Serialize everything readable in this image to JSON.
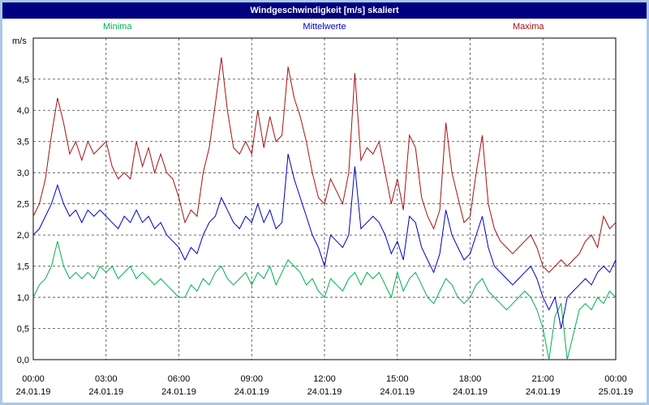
{
  "window": {
    "title": "Windgeschwindigkeit [m/s] skaliert"
  },
  "legend": {
    "minima": "Minima",
    "mittelwerte": "Mittelwerte",
    "maxima": "Maxima"
  },
  "colors": {
    "title_bar": "#000080",
    "panel_border": "#a8c8e8",
    "plot_border": "#000000",
    "gridline": "#404040",
    "minima_line": "#00b050",
    "mittelwerte_line": "#0000c0",
    "maxima_line": "#a81010"
  },
  "chart_data": {
    "type": "line",
    "title": "Windgeschwindigkeit [m/s] skaliert",
    "ylabel": "m/s",
    "ylim": [
      0,
      5.16
    ],
    "x_hours": 24,
    "sample_interval_minutes": 15,
    "grid": "dashed",
    "legend_position": "top",
    "y_ticks": [
      {
        "value": 0.0,
        "label": "0,0"
      },
      {
        "value": 0.5,
        "label": "0,5"
      },
      {
        "value": 1.0,
        "label": "1,0"
      },
      {
        "value": 1.5,
        "label": "1,5"
      },
      {
        "value": 2.0,
        "label": "2,0"
      },
      {
        "value": 2.5,
        "label": "2,5"
      },
      {
        "value": 3.0,
        "label": "3,0"
      },
      {
        "value": 3.5,
        "label": "3,5"
      },
      {
        "value": 4.0,
        "label": "4,0"
      },
      {
        "value": 4.5,
        "label": "4,5"
      }
    ],
    "x_ticks": [
      {
        "hour": 0,
        "time": "00:00",
        "date": "24.01.19"
      },
      {
        "hour": 3,
        "time": "03:00",
        "date": "24.01.19"
      },
      {
        "hour": 6,
        "time": "06:00",
        "date": "24.01.19"
      },
      {
        "hour": 9,
        "time": "09:00",
        "date": "24.01.19"
      },
      {
        "hour": 12,
        "time": "12:00",
        "date": "24.01.19"
      },
      {
        "hour": 15,
        "time": "15:00",
        "date": "24.01.19"
      },
      {
        "hour": 18,
        "time": "18:00",
        "date": "24.01.19"
      },
      {
        "hour": 21,
        "time": "21:00",
        "date": "24.01.19"
      },
      {
        "hour": 24,
        "time": "00:00",
        "date": "25.01.19"
      }
    ],
    "series": [
      {
        "name": "Minima",
        "color": "#00b050",
        "values": [
          1.0,
          1.2,
          1.3,
          1.5,
          1.9,
          1.5,
          1.3,
          1.4,
          1.3,
          1.4,
          1.3,
          1.5,
          1.4,
          1.5,
          1.3,
          1.4,
          1.5,
          1.3,
          1.4,
          1.3,
          1.2,
          1.3,
          1.2,
          1.1,
          1.0,
          1.0,
          1.2,
          1.1,
          1.3,
          1.2,
          1.4,
          1.5,
          1.3,
          1.2,
          1.3,
          1.4,
          1.2,
          1.4,
          1.3,
          1.5,
          1.2,
          1.4,
          1.6,
          1.5,
          1.4,
          1.2,
          1.3,
          1.1,
          1.0,
          1.3,
          1.2,
          1.1,
          1.3,
          1.4,
          1.2,
          1.4,
          1.3,
          1.4,
          1.2,
          1.0,
          1.4,
          1.1,
          1.3,
          1.4,
          1.2,
          1.0,
          0.9,
          1.1,
          1.3,
          1.2,
          1.0,
          0.9,
          1.0,
          1.2,
          1.3,
          1.1,
          1.0,
          0.9,
          0.8,
          0.9,
          1.0,
          1.1,
          1.0,
          0.8,
          0.5,
          0.0,
          0.7,
          0.9,
          0.0,
          0.4,
          0.8,
          0.9,
          0.8,
          1.0,
          0.9,
          1.1,
          1.0
        ]
      },
      {
        "name": "Mittelwerte",
        "color": "#0000c0",
        "values": [
          2.0,
          2.1,
          2.3,
          2.5,
          2.8,
          2.5,
          2.3,
          2.4,
          2.2,
          2.4,
          2.3,
          2.4,
          2.3,
          2.2,
          2.1,
          2.3,
          2.2,
          2.4,
          2.2,
          2.3,
          2.1,
          2.2,
          2.0,
          1.9,
          1.8,
          1.6,
          1.8,
          1.7,
          2.0,
          2.2,
          2.3,
          2.6,
          2.4,
          2.2,
          2.1,
          2.3,
          2.2,
          2.5,
          2.2,
          2.4,
          2.1,
          2.2,
          3.3,
          2.9,
          2.6,
          2.3,
          2.0,
          1.8,
          1.5,
          2.0,
          1.9,
          1.8,
          2.0,
          3.1,
          2.1,
          2.2,
          2.3,
          2.2,
          2.0,
          1.7,
          1.9,
          1.6,
          2.3,
          2.2,
          1.8,
          1.6,
          1.4,
          1.7,
          2.4,
          2.0,
          1.8,
          1.6,
          1.7,
          2.0,
          2.3,
          1.8,
          1.5,
          1.4,
          1.3,
          1.2,
          1.3,
          1.4,
          1.5,
          1.3,
          1.0,
          0.8,
          1.0,
          0.5,
          1.0,
          1.1,
          1.2,
          1.3,
          1.2,
          1.4,
          1.5,
          1.4,
          1.6
        ]
      },
      {
        "name": "Maxima",
        "color": "#a81010",
        "values": [
          2.3,
          2.5,
          2.9,
          3.6,
          4.2,
          3.8,
          3.3,
          3.5,
          3.2,
          3.5,
          3.3,
          3.4,
          3.5,
          3.1,
          2.9,
          3.0,
          2.9,
          3.5,
          3.1,
          3.4,
          3.0,
          3.3,
          3.0,
          2.9,
          2.6,
          2.2,
          2.4,
          2.3,
          3.0,
          3.4,
          4.1,
          4.85,
          4.0,
          3.4,
          3.3,
          3.5,
          3.3,
          4.0,
          3.4,
          3.9,
          3.5,
          3.6,
          4.7,
          4.2,
          3.9,
          3.5,
          3.0,
          2.6,
          2.5,
          2.9,
          2.7,
          2.5,
          3.0,
          4.6,
          3.2,
          3.4,
          3.3,
          3.5,
          3.0,
          2.5,
          2.9,
          2.4,
          3.6,
          3.4,
          2.6,
          2.3,
          2.1,
          2.4,
          3.8,
          3.0,
          2.6,
          2.2,
          2.3,
          3.0,
          3.6,
          2.5,
          2.1,
          1.9,
          1.8,
          1.7,
          1.8,
          1.9,
          2.0,
          1.8,
          1.5,
          1.4,
          1.5,
          1.6,
          1.5,
          1.6,
          1.7,
          1.9,
          2.0,
          1.8,
          2.3,
          2.1,
          2.2
        ]
      }
    ]
  }
}
